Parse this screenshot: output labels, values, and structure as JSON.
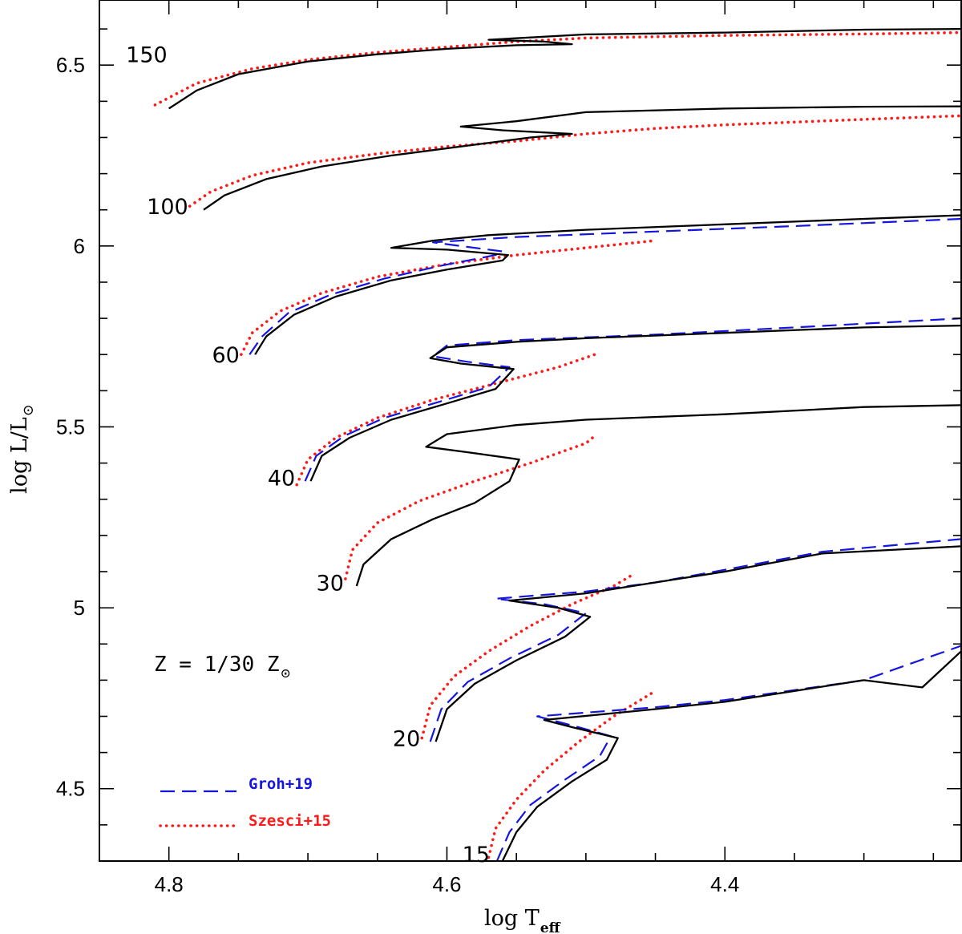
{
  "chart_data": {
    "type": "line",
    "xlabel": {
      "main": "log T",
      "sub": "eff"
    },
    "ylabel": {
      "main": "log L/L",
      "sub": "⊙"
    },
    "xlim": [
      4.85,
      4.23
    ],
    "ylim": [
      4.3,
      6.68
    ],
    "x_ticks_major": [
      4.8,
      4.6,
      4.4
    ],
    "x_tick_labels": [
      "4.8",
      "4.6",
      "4.4"
    ],
    "y_ticks_major": [
      4.5,
      5,
      5.5,
      6,
      6.5
    ],
    "y_tick_labels": [
      "4.5",
      "5",
      "5.5",
      "6",
      "6.5"
    ],
    "metallicity_label": {
      "text": "Z = 1/30 Z",
      "sub": "⊙"
    },
    "colors": {
      "this_work": "#000000",
      "groh": "#1515e0",
      "szesci": "#ff1a1a"
    },
    "legend": [
      {
        "label": "Groh+19",
        "style": "dashed",
        "color": "#1515e0"
      },
      {
        "label": "Szesci+15",
        "style": "dotted",
        "color": "#ff1a1a"
      }
    ],
    "mass_labels": [
      {
        "text": "150",
        "x": 4.8,
        "y": 6.53
      },
      {
        "text": "100",
        "x": 4.785,
        "y": 6.11
      },
      {
        "text": "60",
        "x": 4.748,
        "y": 5.7
      },
      {
        "text": "40",
        "x": 4.708,
        "y": 5.36
      },
      {
        "text": "30",
        "x": 4.673,
        "y": 5.07
      },
      {
        "text": "20",
        "x": 4.618,
        "y": 4.64
      },
      {
        "text": "15",
        "x": 4.568,
        "y": 4.32
      }
    ],
    "series": [
      {
        "name": "150 (this work)",
        "style": "solid",
        "color": "#000000",
        "points": [
          [
            4.8,
            6.38
          ],
          [
            4.78,
            6.43
          ],
          [
            4.75,
            6.475
          ],
          [
            4.7,
            6.51
          ],
          [
            4.65,
            6.53
          ],
          [
            4.6,
            6.545
          ],
          [
            4.55,
            6.555
          ],
          [
            4.51,
            6.558
          ],
          [
            4.53,
            6.565
          ],
          [
            4.57,
            6.57
          ],
          [
            4.5,
            6.585
          ],
          [
            4.4,
            6.59
          ],
          [
            4.3,
            6.598
          ],
          [
            4.23,
            6.6
          ]
        ]
      },
      {
        "name": "150 (Szesci+15)",
        "style": "dotted",
        "color": "#ff1a1a",
        "points": [
          [
            4.81,
            6.39
          ],
          [
            4.78,
            6.45
          ],
          [
            4.74,
            6.49
          ],
          [
            4.7,
            6.515
          ],
          [
            4.65,
            6.535
          ],
          [
            4.6,
            6.55
          ],
          [
            4.55,
            6.565
          ],
          [
            4.5,
            6.575
          ],
          [
            4.4,
            6.582
          ],
          [
            4.3,
            6.586
          ],
          [
            4.23,
            6.59
          ]
        ]
      },
      {
        "name": "100 (this work)",
        "style": "solid",
        "color": "#000000",
        "points": [
          [
            4.775,
            6.1
          ],
          [
            4.76,
            6.14
          ],
          [
            4.73,
            6.185
          ],
          [
            4.69,
            6.22
          ],
          [
            4.64,
            6.25
          ],
          [
            4.58,
            6.28
          ],
          [
            4.54,
            6.3
          ],
          [
            4.51,
            6.31
          ],
          [
            4.56,
            6.32
          ],
          [
            4.59,
            6.33
          ],
          [
            4.55,
            6.345
          ],
          [
            4.5,
            6.37
          ],
          [
            4.4,
            6.38
          ],
          [
            4.3,
            6.385
          ],
          [
            4.23,
            6.386
          ]
        ]
      },
      {
        "name": "100 (Szesci+15)",
        "style": "dotted",
        "color": "#ff1a1a",
        "points": [
          [
            4.785,
            6.11
          ],
          [
            4.77,
            6.15
          ],
          [
            4.74,
            6.195
          ],
          [
            4.7,
            6.23
          ],
          [
            4.65,
            6.255
          ],
          [
            4.6,
            6.275
          ],
          [
            4.55,
            6.29
          ],
          [
            4.5,
            6.31
          ],
          [
            4.45,
            6.325
          ],
          [
            4.4,
            6.335
          ],
          [
            4.3,
            6.35
          ],
          [
            4.23,
            6.36
          ]
        ]
      },
      {
        "name": "60 (this work)",
        "style": "solid",
        "color": "#000000",
        "points": [
          [
            4.738,
            5.7
          ],
          [
            4.73,
            5.75
          ],
          [
            4.71,
            5.81
          ],
          [
            4.68,
            5.86
          ],
          [
            4.64,
            5.905
          ],
          [
            4.6,
            5.935
          ],
          [
            4.56,
            5.96
          ],
          [
            4.556,
            5.975
          ],
          [
            4.6,
            5.99
          ],
          [
            4.64,
            5.995
          ],
          [
            4.61,
            6.015
          ],
          [
            4.57,
            6.03
          ],
          [
            4.5,
            6.045
          ],
          [
            4.4,
            6.06
          ],
          [
            4.3,
            6.075
          ],
          [
            4.23,
            6.085
          ]
        ]
      },
      {
        "name": "60 (Groh+19)",
        "style": "dashed",
        "color": "#1515e0",
        "points": [
          [
            4.742,
            5.7
          ],
          [
            4.733,
            5.75
          ],
          [
            4.714,
            5.815
          ],
          [
            4.684,
            5.865
          ],
          [
            4.645,
            5.91
          ],
          [
            4.605,
            5.945
          ],
          [
            4.565,
            5.975
          ],
          [
            4.56,
            5.985
          ],
          [
            4.59,
            6.0
          ],
          [
            4.61,
            6.01
          ],
          [
            4.55,
            6.025
          ],
          [
            4.45,
            6.04
          ],
          [
            4.35,
            6.055
          ],
          [
            4.23,
            6.075
          ]
        ]
      },
      {
        "name": "60 (Szesci+15)",
        "style": "dotted",
        "color": "#ff1a1a",
        "points": [
          [
            4.748,
            5.7
          ],
          [
            4.74,
            5.76
          ],
          [
            4.72,
            5.82
          ],
          [
            4.69,
            5.87
          ],
          [
            4.65,
            5.915
          ],
          [
            4.6,
            5.95
          ],
          [
            4.55,
            5.975
          ],
          [
            4.5,
            5.995
          ],
          [
            4.45,
            6.015
          ]
        ]
      },
      {
        "name": "40 (this work)",
        "style": "solid",
        "color": "#000000",
        "points": [
          [
            4.698,
            5.35
          ],
          [
            4.69,
            5.42
          ],
          [
            4.67,
            5.47
          ],
          [
            4.64,
            5.52
          ],
          [
            4.6,
            5.565
          ],
          [
            4.565,
            5.605
          ],
          [
            4.552,
            5.66
          ],
          [
            4.59,
            5.675
          ],
          [
            4.612,
            5.69
          ],
          [
            4.6,
            5.72
          ],
          [
            4.55,
            5.735
          ],
          [
            4.5,
            5.745
          ],
          [
            4.4,
            5.76
          ],
          [
            4.3,
            5.775
          ],
          [
            4.23,
            5.78
          ]
        ]
      },
      {
        "name": "40 (Groh+19)",
        "style": "dashed",
        "color": "#1515e0",
        "points": [
          [
            4.702,
            5.35
          ],
          [
            4.694,
            5.42
          ],
          [
            4.674,
            5.475
          ],
          [
            4.645,
            5.525
          ],
          [
            4.605,
            5.57
          ],
          [
            4.57,
            5.61
          ],
          [
            4.555,
            5.665
          ],
          [
            4.585,
            5.68
          ],
          [
            4.61,
            5.695
          ],
          [
            4.6,
            5.725
          ],
          [
            4.55,
            5.74
          ],
          [
            4.45,
            5.755
          ],
          [
            4.35,
            5.775
          ],
          [
            4.23,
            5.8
          ]
        ]
      },
      {
        "name": "40 (Szesci+15)",
        "style": "dotted",
        "color": "#ff1a1a",
        "points": [
          [
            4.708,
            5.34
          ],
          [
            4.7,
            5.41
          ],
          [
            4.68,
            5.47
          ],
          [
            4.65,
            5.525
          ],
          [
            4.61,
            5.575
          ],
          [
            4.56,
            5.625
          ],
          [
            4.52,
            5.665
          ],
          [
            4.49,
            5.705
          ]
        ]
      },
      {
        "name": "30 (this work)",
        "style": "solid",
        "color": "#000000",
        "points": [
          [
            4.665,
            5.06
          ],
          [
            4.66,
            5.12
          ],
          [
            4.64,
            5.19
          ],
          [
            4.61,
            5.245
          ],
          [
            4.58,
            5.29
          ],
          [
            4.555,
            5.35
          ],
          [
            4.548,
            5.41
          ],
          [
            4.585,
            5.43
          ],
          [
            4.615,
            5.445
          ],
          [
            4.6,
            5.48
          ],
          [
            4.55,
            5.505
          ],
          [
            4.5,
            5.52
          ],
          [
            4.4,
            5.535
          ],
          [
            4.3,
            5.555
          ],
          [
            4.23,
            5.56
          ]
        ]
      },
      {
        "name": "30 (Szesci+15)",
        "style": "dotted",
        "color": "#ff1a1a",
        "points": [
          [
            4.673,
            5.08
          ],
          [
            4.668,
            5.16
          ],
          [
            4.65,
            5.235
          ],
          [
            4.62,
            5.295
          ],
          [
            4.58,
            5.35
          ],
          [
            4.54,
            5.4
          ],
          [
            4.5,
            5.455
          ],
          [
            4.492,
            5.48
          ]
        ]
      },
      {
        "name": "20 (this work)",
        "style": "solid",
        "color": "#000000",
        "points": [
          [
            4.608,
            4.63
          ],
          [
            4.6,
            4.72
          ],
          [
            4.58,
            4.79
          ],
          [
            4.55,
            4.855
          ],
          [
            4.515,
            4.92
          ],
          [
            4.497,
            4.975
          ],
          [
            4.52,
            5.0
          ],
          [
            4.555,
            5.02
          ],
          [
            4.5,
            5.04
          ],
          [
            4.45,
            5.07
          ],
          [
            4.4,
            5.1
          ],
          [
            4.33,
            5.15
          ],
          [
            4.23,
            5.17
          ]
        ]
      },
      {
        "name": "20 (Groh+19)",
        "style": "dashed",
        "color": "#1515e0",
        "points": [
          [
            4.612,
            4.63
          ],
          [
            4.604,
            4.72
          ],
          [
            4.585,
            4.795
          ],
          [
            4.555,
            4.86
          ],
          [
            4.52,
            4.925
          ],
          [
            4.5,
            4.985
          ],
          [
            4.53,
            5.01
          ],
          [
            4.565,
            5.025
          ],
          [
            4.5,
            5.045
          ],
          [
            4.45,
            5.07
          ],
          [
            4.4,
            5.105
          ],
          [
            4.33,
            5.155
          ],
          [
            4.23,
            5.19
          ]
        ]
      },
      {
        "name": "20 (Szesci+15)",
        "style": "dotted",
        "color": "#ff1a1a",
        "points": [
          [
            4.618,
            4.64
          ],
          [
            4.612,
            4.73
          ],
          [
            4.595,
            4.81
          ],
          [
            4.57,
            4.88
          ],
          [
            4.54,
            4.95
          ],
          [
            4.51,
            5.01
          ],
          [
            4.48,
            5.06
          ],
          [
            4.467,
            5.09
          ]
        ]
      },
      {
        "name": "15 (this work)",
        "style": "solid",
        "color": "#000000",
        "points": [
          [
            4.56,
            4.3
          ],
          [
            4.55,
            4.38
          ],
          [
            4.535,
            4.45
          ],
          [
            4.51,
            4.52
          ],
          [
            4.485,
            4.58
          ],
          [
            4.477,
            4.64
          ],
          [
            4.51,
            4.67
          ],
          [
            4.53,
            4.69
          ],
          [
            4.45,
            4.72
          ],
          [
            4.4,
            4.74
          ],
          [
            4.3,
            4.8
          ],
          [
            4.258,
            4.78
          ],
          [
            4.23,
            4.88
          ]
        ]
      },
      {
        "name": "15 (Groh+19)",
        "style": "dashed",
        "color": "#1515e0",
        "points": [
          [
            4.564,
            4.3
          ],
          [
            4.555,
            4.38
          ],
          [
            4.54,
            4.455
          ],
          [
            4.515,
            4.525
          ],
          [
            4.49,
            4.59
          ],
          [
            4.482,
            4.645
          ],
          [
            4.51,
            4.675
          ],
          [
            4.535,
            4.7
          ],
          [
            4.45,
            4.725
          ],
          [
            4.4,
            4.745
          ],
          [
            4.3,
            4.8
          ],
          [
            4.23,
            4.895
          ]
        ]
      },
      {
        "name": "15 (Szesci+15)",
        "style": "dotted",
        "color": "#ff1a1a",
        "points": [
          [
            4.57,
            4.31
          ],
          [
            4.565,
            4.39
          ],
          [
            4.55,
            4.47
          ],
          [
            4.53,
            4.55
          ],
          [
            4.505,
            4.63
          ],
          [
            4.48,
            4.7
          ],
          [
            4.45,
            4.77
          ]
        ]
      }
    ]
  }
}
